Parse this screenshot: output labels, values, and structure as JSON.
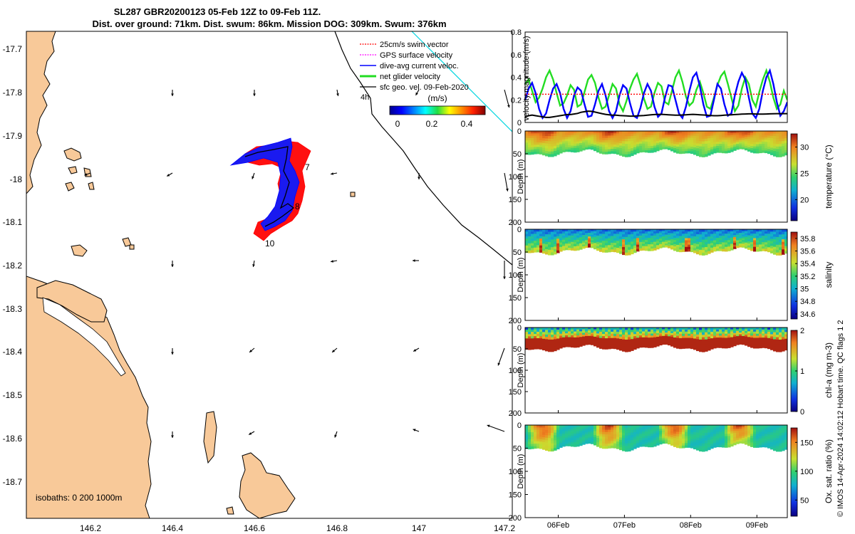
{
  "title_line1": "SL287 GBR20200123 05-Feb 12Z to 09-Feb 11Z.",
  "title_line2": "Dist. over ground: 71km. Dist. swum: 86km. Mission DOG: 309km. Swum: 376km",
  "credit": "© IMOS 14-Apr-2024 14:02:12 Hobart time. QC flags 1  2",
  "colors": {
    "land": "#F8C999",
    "swim": "#FF0000",
    "gps": "#FF00FF",
    "dive_avg": "#0000FF",
    "net": "#22DD22",
    "geo": "#000000",
    "track_cyan": "#00D5E0"
  },
  "chart_data": [
    {
      "type": "map",
      "xlim": [
        146.03,
        147.22
      ],
      "ylim": [
        -18.78,
        -17.66
      ],
      "x_ticks": [
        "146.2",
        "146.4",
        "146.6",
        "146.8",
        "147"
      ],
      "y_ticks": [
        "-17.7",
        "-17.8",
        "-17.9",
        "-18",
        "-18.1",
        "-18.2",
        "-18.3",
        "-18.4",
        "-18.5",
        "-18.6",
        "-18.7"
      ],
      "legend": [
        {
          "label": "25cm/s swim vector",
          "color": "#FF0000",
          "style": "dotted"
        },
        {
          "label": "GPS surface velocity",
          "color": "#FF00FF",
          "style": "dotted"
        },
        {
          "label": "dive-avg current veloc.",
          "color": "#0000FF",
          "style": "solid"
        },
        {
          "label": "net glider velocity",
          "color": "#22DD22",
          "style": "thick"
        },
        {
          "label": "sfc geo. vel. 09-Feb-2020",
          "color": "#000000",
          "style": "solid"
        }
      ],
      "legend_extra": "4h",
      "colorbar_label": "(m/s)",
      "colorbar_ticks": [
        "0",
        "0.2",
        "0.4"
      ],
      "colorbar_range": [
        0,
        0.5
      ],
      "day_labels": [
        "7",
        "8",
        "10"
      ],
      "isobaths_label": "isobaths: 0   200  1000m"
    },
    {
      "type": "line",
      "ylabel": "velocity magnitude (m/s)",
      "ylim": [
        0,
        0.8
      ],
      "y_ticks": [
        "0",
        "0.2",
        "0.4",
        "0.6",
        "0.8"
      ],
      "x_ticks": [
        "06Feb",
        "07Feb",
        "08Feb",
        "09Feb"
      ],
      "xlim_days": [
        5.5,
        9.46
      ],
      "series": [
        {
          "color": "#22DD22",
          "values": [
            0.34,
            0.38,
            0.28,
            0.18,
            0.22,
            0.3,
            0.4,
            0.46,
            0.38,
            0.26,
            0.15,
            0.17,
            0.24,
            0.33,
            0.29,
            0.14,
            0.16,
            0.27,
            0.38,
            0.42,
            0.35,
            0.22,
            0.12,
            0.14,
            0.24,
            0.34,
            0.3,
            0.16,
            0.1,
            0.19,
            0.3,
            0.38,
            0.43,
            0.33,
            0.21,
            0.12,
            0.14,
            0.26,
            0.35,
            0.32,
            0.18,
            0.16,
            0.28,
            0.4,
            0.46,
            0.36,
            0.23,
            0.15,
            0.18,
            0.29,
            0.36,
            0.26,
            0.14,
            0.12,
            0.22,
            0.33,
            0.41,
            0.45,
            0.34,
            0.22,
            0.1,
            0.15,
            0.3,
            0.4,
            0.34,
            0.2,
            0.14,
            0.27,
            0.38,
            0.46,
            0.36,
            0.22,
            0.12,
            0.16,
            0.28,
            0.2
          ]
        },
        {
          "color": "#0000FF",
          "values": [
            0.2,
            0.3,
            0.35,
            0.26,
            0.12,
            0.04,
            0.08,
            0.2,
            0.3,
            0.34,
            0.26,
            0.12,
            0.04,
            0.1,
            0.24,
            0.31,
            0.28,
            0.16,
            0.05,
            0.06,
            0.16,
            0.28,
            0.34,
            0.24,
            0.1,
            0.04,
            0.1,
            0.24,
            0.33,
            0.3,
            0.17,
            0.06,
            0.04,
            0.13,
            0.26,
            0.34,
            0.28,
            0.14,
            0.05,
            0.08,
            0.22,
            0.33,
            0.32,
            0.2,
            0.08,
            0.04,
            0.14,
            0.28,
            0.4,
            0.44,
            0.32,
            0.16,
            0.05,
            0.06,
            0.2,
            0.34,
            0.3,
            0.16,
            0.06,
            0.08,
            0.24,
            0.36,
            0.44,
            0.38,
            0.22,
            0.08,
            0.04,
            0.12,
            0.28,
            0.4,
            0.46,
            0.34,
            0.18,
            0.06,
            0.1,
            0.18
          ]
        },
        {
          "color": "#000000",
          "values": [
            0.05,
            0.06,
            0.065,
            0.06,
            0.055,
            0.05,
            0.045,
            0.045,
            0.05,
            0.055,
            0.06,
            0.065,
            0.07,
            0.07,
            0.075,
            0.08,
            0.09,
            0.095,
            0.1,
            0.098,
            0.092,
            0.085,
            0.078,
            0.072,
            0.068,
            0.065,
            0.065,
            0.062,
            0.06,
            0.058,
            0.056,
            0.056,
            0.058,
            0.06,
            0.062,
            0.065,
            0.068,
            0.07,
            0.072,
            0.072,
            0.07,
            0.068,
            0.066,
            0.064,
            0.064,
            0.066,
            0.068,
            0.07,
            0.072,
            0.07,
            0.068,
            0.066,
            0.064,
            0.062,
            0.06,
            0.06,
            0.062,
            0.064,
            0.066,
            0.068,
            0.07,
            0.072,
            0.074,
            0.075,
            0.076,
            0.076,
            0.075,
            0.074,
            0.074,
            0.075,
            0.076,
            0.077,
            0.078,
            0.078,
            0.078,
            0.078
          ]
        },
        {
          "color": "#FF0000",
          "style": "dotted",
          "values": [
            0.25,
            0.25
          ]
        }
      ]
    },
    {
      "type": "heatmap",
      "ylabel": "Depth (m)",
      "ylim": [
        0,
        200
      ],
      "y_ticks": [
        "0",
        "50",
        "100",
        "150",
        "200"
      ],
      "colorbar_label": "temperature (°C)",
      "colorbar_ticks": [
        "20",
        "25",
        "30"
      ],
      "colorbar_range": [
        16,
        32.5
      ]
    },
    {
      "type": "heatmap",
      "ylabel": "Depth (m)",
      "ylim": [
        0,
        200
      ],
      "y_ticks": [
        "0",
        "50",
        "100",
        "150",
        "200"
      ],
      "colorbar_label": "salinity",
      "colorbar_ticks": [
        "34.6",
        "34.8",
        "35",
        "35.2",
        "35.4",
        "35.6",
        "35.8"
      ],
      "colorbar_range": [
        34.52,
        35.9
      ]
    },
    {
      "type": "heatmap",
      "ylabel": "Depth (m)",
      "ylim": [
        0,
        200
      ],
      "y_ticks": [
        "0",
        "50",
        "100",
        "150",
        "200"
      ],
      "colorbar_label": "chl-a (mg m-3)",
      "colorbar_ticks": [
        "0",
        "1",
        "2"
      ],
      "colorbar_range": [
        0,
        2
      ]
    },
    {
      "type": "heatmap",
      "ylabel": "Depth (m)",
      "ylim": [
        0,
        200
      ],
      "y_ticks": [
        "0",
        "50",
        "100",
        "150",
        "200"
      ],
      "x_ticks": [
        "06Feb",
        "07Feb",
        "08Feb",
        "09Feb"
      ],
      "colorbar_label": "Ox. sat. ratio (%)",
      "colorbar_ticks": [
        "50",
        "100",
        "150"
      ],
      "colorbar_range": [
        22,
        175
      ]
    }
  ]
}
